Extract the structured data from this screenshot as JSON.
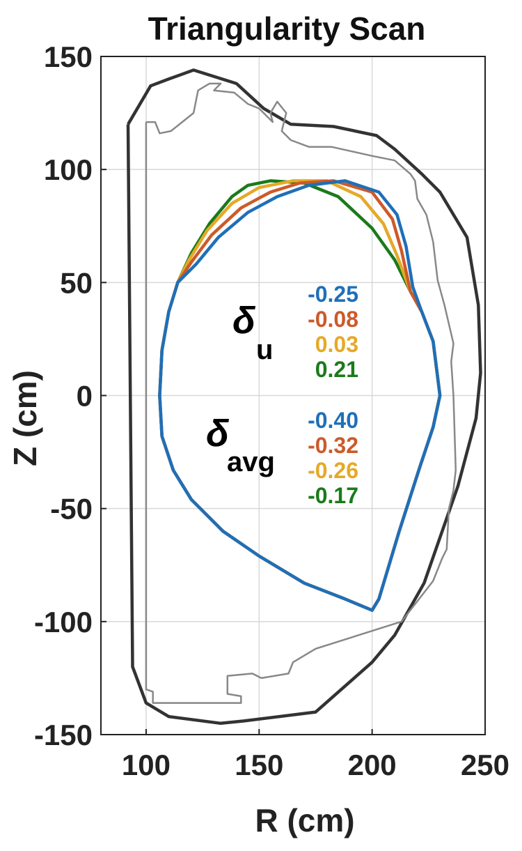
{
  "chart_data": {
    "type": "line",
    "title": "Triangularity Scan",
    "xlabel": "R (cm)",
    "ylabel": "Z (cm)",
    "xlim": [
      80,
      250
    ],
    "ylim": [
      -150,
      150
    ],
    "xticks": [
      "100",
      "150",
      "200",
      "250"
    ],
    "yticks": [
      "150",
      "100",
      "50",
      "0",
      "-50",
      "-100",
      "-150"
    ],
    "grid": true,
    "annotations": {
      "delta_u_symbol": "δ",
      "delta_u_subscript": "u",
      "delta_avg_symbol": "δ",
      "delta_avg_subscript": "avg"
    },
    "structures": [
      {
        "color": "#333333",
        "points": [
          [
            92,
            120
          ],
          [
            94,
            -120
          ],
          [
            100,
            -136
          ],
          [
            110,
            -142
          ],
          [
            133,
            -145
          ],
          [
            143,
            -144
          ],
          [
            175,
            -140
          ],
          [
            200,
            -118
          ],
          [
            210,
            -106
          ],
          [
            223,
            -83
          ],
          [
            238,
            -40
          ],
          [
            246,
            -10
          ],
          [
            248,
            10
          ],
          [
            247,
            40
          ],
          [
            242,
            70
          ],
          [
            230,
            90
          ],
          [
            222,
            98
          ],
          [
            210,
            109
          ],
          [
            202,
            115
          ],
          [
            183,
            119
          ],
          [
            164,
            120
          ],
          [
            152,
            127
          ],
          [
            140,
            138
          ],
          [
            121,
            144
          ],
          [
            110,
            140
          ],
          [
            102,
            137
          ],
          [
            92,
            120
          ]
        ]
      },
      {
        "color": "#888888",
        "points": [
          [
            100,
            121
          ],
          [
            100,
            -130
          ],
          [
            103,
            -131
          ],
          [
            103,
            -136
          ],
          [
            142,
            -136
          ],
          [
            142,
            -133
          ],
          [
            136,
            -132
          ],
          [
            136,
            -124
          ],
          [
            147,
            -123
          ],
          [
            151,
            -125
          ],
          [
            163,
            -123
          ],
          [
            165,
            -118
          ],
          [
            175,
            -112
          ],
          [
            213,
            -100
          ],
          [
            227,
            -82
          ],
          [
            231,
            -72
          ],
          [
            233,
            -68
          ],
          [
            234,
            -50
          ],
          [
            236,
            -42
          ],
          [
            237,
            -33
          ],
          [
            236,
            0
          ],
          [
            235,
            15
          ],
          [
            236,
            23
          ],
          [
            232,
            40
          ],
          [
            229,
            51
          ],
          [
            227,
            68
          ],
          [
            224,
            80
          ],
          [
            220,
            87
          ],
          [
            219,
            95
          ],
          [
            217,
            98
          ],
          [
            210,
            104
          ],
          [
            200,
            106
          ],
          [
            182,
            110
          ],
          [
            172,
            110
          ],
          [
            164,
            113
          ],
          [
            160,
            117
          ],
          [
            162,
            125
          ],
          [
            158,
            130
          ],
          [
            155,
            125
          ],
          [
            156,
            121
          ],
          [
            150,
            127
          ],
          [
            145,
            129
          ],
          [
            139,
            134
          ],
          [
            130,
            135
          ],
          [
            131,
            136
          ],
          [
            133,
            138
          ],
          [
            128,
            138
          ],
          [
            123,
            135
          ],
          [
            121,
            125
          ],
          [
            111,
            117
          ],
          [
            106,
            116
          ],
          [
            104,
            121
          ],
          [
            100,
            121
          ]
        ]
      }
    ],
    "series": [
      {
        "delta_u": "0.21",
        "delta_avg": "-0.17",
        "color": "#1a7a1a",
        "points": [
          [
            230,
            0
          ],
          [
            227,
            24
          ],
          [
            222,
            37
          ],
          [
            217,
            46
          ],
          [
            210,
            60
          ],
          [
            200,
            74
          ],
          [
            185,
            88
          ],
          [
            170,
            94
          ],
          [
            155,
            95
          ],
          [
            145,
            93
          ],
          [
            138,
            88
          ],
          [
            128,
            76
          ],
          [
            120,
            63
          ],
          [
            114,
            50
          ],
          [
            110,
            37
          ],
          [
            107,
            20
          ],
          [
            106,
            0
          ],
          [
            107,
            -18
          ],
          [
            112,
            -33
          ],
          [
            120,
            -46
          ],
          [
            134,
            -60
          ],
          [
            150,
            -71
          ],
          [
            170,
            -83
          ],
          [
            188,
            -90
          ],
          [
            200,
            -95
          ],
          [
            203,
            -90
          ],
          [
            212,
            -60
          ],
          [
            221,
            -32
          ],
          [
            227,
            -14
          ],
          [
            230,
            0
          ]
        ]
      },
      {
        "delta_u": "0.03",
        "delta_avg": "-0.26",
        "color": "#e5a928",
        "points": [
          [
            230,
            0
          ],
          [
            227,
            24
          ],
          [
            222,
            37
          ],
          [
            217,
            46
          ],
          [
            211,
            62
          ],
          [
            205,
            76
          ],
          [
            195,
            88
          ],
          [
            180,
            95
          ],
          [
            165,
            95
          ],
          [
            150,
            92
          ],
          [
            138,
            85
          ],
          [
            127,
            73
          ],
          [
            119,
            60
          ],
          [
            114,
            50
          ],
          [
            110,
            37
          ],
          [
            107,
            20
          ],
          [
            106,
            0
          ],
          [
            107,
            -18
          ],
          [
            112,
            -33
          ],
          [
            120,
            -46
          ],
          [
            134,
            -60
          ],
          [
            150,
            -71
          ],
          [
            170,
            -83
          ],
          [
            188,
            -90
          ],
          [
            200,
            -95
          ],
          [
            203,
            -90
          ],
          [
            212,
            -60
          ],
          [
            221,
            -32
          ],
          [
            227,
            -14
          ],
          [
            230,
            0
          ]
        ]
      },
      {
        "delta_u": "-0.08",
        "delta_avg": "-0.32",
        "color": "#cc5a2a",
        "points": [
          [
            230,
            0
          ],
          [
            227,
            24
          ],
          [
            222,
            37
          ],
          [
            217,
            46
          ],
          [
            213,
            64
          ],
          [
            209,
            78
          ],
          [
            200,
            90
          ],
          [
            183,
            95
          ],
          [
            168,
            94
          ],
          [
            155,
            90
          ],
          [
            142,
            83
          ],
          [
            129,
            71
          ],
          [
            120,
            59
          ],
          [
            114,
            50
          ],
          [
            110,
            37
          ],
          [
            107,
            20
          ],
          [
            106,
            0
          ],
          [
            107,
            -18
          ],
          [
            112,
            -33
          ],
          [
            120,
            -46
          ],
          [
            134,
            -60
          ],
          [
            150,
            -71
          ],
          [
            170,
            -83
          ],
          [
            188,
            -90
          ],
          [
            200,
            -95
          ],
          [
            203,
            -90
          ],
          [
            212,
            -60
          ],
          [
            221,
            -32
          ],
          [
            227,
            -14
          ],
          [
            230,
            0
          ]
        ]
      },
      {
        "delta_u": "-0.25",
        "delta_avg": "-0.40",
        "color": "#1f6fb8",
        "points": [
          [
            230,
            0
          ],
          [
            227,
            24
          ],
          [
            222,
            37
          ],
          [
            218,
            48
          ],
          [
            215,
            66
          ],
          [
            211,
            80
          ],
          [
            203,
            90
          ],
          [
            188,
            95
          ],
          [
            172,
            93
          ],
          [
            158,
            88
          ],
          [
            145,
            81
          ],
          [
            132,
            70
          ],
          [
            122,
            58
          ],
          [
            114,
            50
          ],
          [
            110,
            37
          ],
          [
            107,
            20
          ],
          [
            106,
            0
          ],
          [
            107,
            -18
          ],
          [
            112,
            -33
          ],
          [
            120,
            -46
          ],
          [
            134,
            -60
          ],
          [
            150,
            -71
          ],
          [
            170,
            -83
          ],
          [
            188,
            -90
          ],
          [
            200,
            -95
          ],
          [
            203,
            -90
          ],
          [
            212,
            -60
          ],
          [
            221,
            -32
          ],
          [
            227,
            -14
          ],
          [
            230,
            0
          ]
        ]
      }
    ]
  }
}
